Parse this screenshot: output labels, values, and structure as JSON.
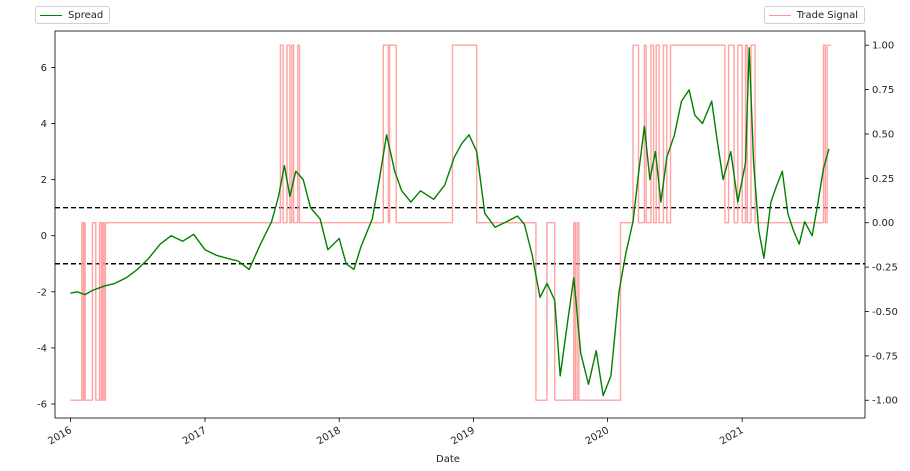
{
  "chart_data": {
    "type": "line",
    "xlabel": "Date",
    "x_ticks": [
      "2016",
      "2017",
      "2018",
      "2019",
      "2020",
      "2021"
    ],
    "y_left_ticks": [
      -6,
      -4,
      -2,
      0,
      2,
      4,
      6
    ],
    "y_right_ticks": [
      "-1.00",
      "-0.75",
      "-0.50",
      "-0.25",
      "0.00",
      "0.25",
      "0.50",
      "0.75",
      "1.00"
    ],
    "ylim_left": [
      -6.5,
      7.3
    ],
    "ylim_right": [
      -1.1,
      1.08
    ],
    "thresholds": [
      1,
      -1
    ],
    "grid": false,
    "legend": [
      {
        "name": "Spread",
        "color": "#008000",
        "placement": "top-left"
      },
      {
        "name": "Trade Signal",
        "color": "#ff9999",
        "placement": "top-right"
      }
    ],
    "series": [
      {
        "name": "Spread",
        "axis": "left",
        "color": "#008000",
        "points": [
          [
            "2016-01-01",
            -2.05
          ],
          [
            "2016-01-20",
            -2.0
          ],
          [
            "2016-02-10",
            -2.1
          ],
          [
            "2016-03-01",
            -1.95
          ],
          [
            "2016-04-01",
            -1.8
          ],
          [
            "2016-05-01",
            -1.7
          ],
          [
            "2016-06-01",
            -1.5
          ],
          [
            "2016-07-01",
            -1.2
          ],
          [
            "2016-08-01",
            -0.8
          ],
          [
            "2016-09-01",
            -0.3
          ],
          [
            "2016-10-01",
            0.0
          ],
          [
            "2016-11-01",
            -0.2
          ],
          [
            "2016-12-01",
            0.05
          ],
          [
            "2017-01-01",
            -0.5
          ],
          [
            "2017-02-01",
            -0.7
          ],
          [
            "2017-03-01",
            -0.8
          ],
          [
            "2017-04-01",
            -0.9
          ],
          [
            "2017-05-01",
            -1.2
          ],
          [
            "2017-06-01",
            -0.3
          ],
          [
            "2017-07-01",
            0.5
          ],
          [
            "2017-07-20",
            1.4
          ],
          [
            "2017-08-05",
            2.5
          ],
          [
            "2017-08-20",
            1.4
          ],
          [
            "2017-09-05",
            2.3
          ],
          [
            "2017-09-25",
            2.0
          ],
          [
            "2017-10-15",
            1.0
          ],
          [
            "2017-11-10",
            0.6
          ],
          [
            "2017-12-01",
            -0.5
          ],
          [
            "2018-01-01",
            -0.1
          ],
          [
            "2018-01-20",
            -1.0
          ],
          [
            "2018-02-10",
            -1.2
          ],
          [
            "2018-03-01",
            -0.4
          ],
          [
            "2018-04-01",
            0.6
          ],
          [
            "2018-04-20",
            2.0
          ],
          [
            "2018-05-10",
            3.6
          ],
          [
            "2018-06-01",
            2.3
          ],
          [
            "2018-06-20",
            1.6
          ],
          [
            "2018-07-15",
            1.2
          ],
          [
            "2018-08-10",
            1.6
          ],
          [
            "2018-09-15",
            1.3
          ],
          [
            "2018-10-15",
            1.8
          ],
          [
            "2018-11-10",
            2.8
          ],
          [
            "2018-12-01",
            3.3
          ],
          [
            "2018-12-20",
            3.6
          ],
          [
            "2019-01-10",
            3.0
          ],
          [
            "2019-02-01",
            0.8
          ],
          [
            "2019-03-01",
            0.3
          ],
          [
            "2019-04-01",
            0.5
          ],
          [
            "2019-05-01",
            0.7
          ],
          [
            "2019-05-20",
            0.4
          ],
          [
            "2019-06-10",
            -0.7
          ],
          [
            "2019-07-01",
            -2.2
          ],
          [
            "2019-07-20",
            -1.7
          ],
          [
            "2019-08-10",
            -2.3
          ],
          [
            "2019-08-25",
            -5.0
          ],
          [
            "2019-09-15",
            -3.0
          ],
          [
            "2019-10-01",
            -1.5
          ],
          [
            "2019-10-20",
            -4.2
          ],
          [
            "2019-11-10",
            -5.3
          ],
          [
            "2019-12-01",
            -4.1
          ],
          [
            "2019-12-20",
            -5.7
          ],
          [
            "2020-01-10",
            -5.0
          ],
          [
            "2020-02-01",
            -2.0
          ],
          [
            "2020-02-20",
            -0.6
          ],
          [
            "2020-03-10",
            0.5
          ],
          [
            "2020-03-25",
            2.2
          ],
          [
            "2020-04-10",
            3.9
          ],
          [
            "2020-04-25",
            2.0
          ],
          [
            "2020-05-10",
            3.0
          ],
          [
            "2020-05-25",
            1.2
          ],
          [
            "2020-06-10",
            2.8
          ],
          [
            "2020-07-01",
            3.6
          ],
          [
            "2020-07-20",
            4.8
          ],
          [
            "2020-08-10",
            5.2
          ],
          [
            "2020-08-25",
            4.3
          ],
          [
            "2020-09-15",
            4.0
          ],
          [
            "2020-10-10",
            4.8
          ],
          [
            "2020-10-25",
            3.4
          ],
          [
            "2020-11-10",
            2.0
          ],
          [
            "2020-12-01",
            3.0
          ],
          [
            "2020-12-20",
            1.2
          ],
          [
            "2021-01-10",
            2.6
          ],
          [
            "2021-01-20",
            6.7
          ],
          [
            "2021-02-01",
            2.6
          ],
          [
            "2021-02-15",
            0.2
          ],
          [
            "2021-03-01",
            -0.8
          ],
          [
            "2021-03-20",
            1.2
          ],
          [
            "2021-04-05",
            1.8
          ],
          [
            "2021-04-20",
            2.3
          ],
          [
            "2021-05-05",
            0.8
          ],
          [
            "2021-05-20",
            0.2
          ],
          [
            "2021-06-05",
            -0.3
          ],
          [
            "2021-06-20",
            0.5
          ],
          [
            "2021-07-10",
            0.0
          ],
          [
            "2021-07-25",
            1.1
          ],
          [
            "2021-08-10",
            2.4
          ],
          [
            "2021-08-25",
            3.1
          ]
        ]
      },
      {
        "name": "Trade Signal",
        "axis": "right",
        "color": "#ff9999",
        "points": [
          [
            "2016-01-01",
            -1
          ],
          [
            "2016-02-01",
            -1
          ],
          [
            "2016-02-01",
            0
          ],
          [
            "2016-02-05",
            0
          ],
          [
            "2016-02-05",
            -1
          ],
          [
            "2016-02-08",
            -1
          ],
          [
            "2016-02-08",
            0
          ],
          [
            "2016-02-10",
            0
          ],
          [
            "2016-02-10",
            -1
          ],
          [
            "2016-03-01",
            -1
          ],
          [
            "2016-03-01",
            0
          ],
          [
            "2016-03-10",
            0
          ],
          [
            "2016-03-10",
            -1
          ],
          [
            "2016-03-20",
            -1
          ],
          [
            "2016-03-20",
            0
          ],
          [
            "2016-03-25",
            0
          ],
          [
            "2016-03-25",
            -1
          ],
          [
            "2016-03-28",
            -1
          ],
          [
            "2016-03-28",
            0
          ],
          [
            "2016-04-01",
            0
          ],
          [
            "2016-04-01",
            -1
          ],
          [
            "2016-04-05",
            -1
          ],
          [
            "2016-04-05",
            0
          ],
          [
            "2017-07-25",
            0
          ],
          [
            "2017-07-25",
            1
          ],
          [
            "2017-08-01",
            1
          ],
          [
            "2017-08-01",
            0
          ],
          [
            "2017-08-12",
            0
          ],
          [
            "2017-08-12",
            1
          ],
          [
            "2017-08-20",
            1
          ],
          [
            "2017-08-20",
            0
          ],
          [
            "2017-08-25",
            0
          ],
          [
            "2017-08-25",
            1
          ],
          [
            "2017-08-30",
            1
          ],
          [
            "2017-08-30",
            0
          ],
          [
            "2017-09-10",
            0
          ],
          [
            "2017-09-10",
            1
          ],
          [
            "2017-09-15",
            1
          ],
          [
            "2017-09-15",
            0
          ],
          [
            "2018-05-01",
            0
          ],
          [
            "2018-05-01",
            1
          ],
          [
            "2018-05-15",
            1
          ],
          [
            "2018-05-15",
            0
          ],
          [
            "2018-05-18",
            0
          ],
          [
            "2018-05-18",
            1
          ],
          [
            "2018-06-05",
            1
          ],
          [
            "2018-06-05",
            0
          ],
          [
            "2018-11-05",
            0
          ],
          [
            "2018-11-05",
            1
          ],
          [
            "2019-01-10",
            1
          ],
          [
            "2019-01-10",
            0
          ],
          [
            "2019-06-20",
            0
          ],
          [
            "2019-06-20",
            -1
          ],
          [
            "2019-07-20",
            -1
          ],
          [
            "2019-07-20",
            0
          ],
          [
            "2019-08-10",
            0
          ],
          [
            "2019-08-10",
            -1
          ],
          [
            "2019-10-01",
            -1
          ],
          [
            "2019-10-01",
            0
          ],
          [
            "2019-10-05",
            0
          ],
          [
            "2019-10-05",
            -1
          ],
          [
            "2019-10-10",
            -1
          ],
          [
            "2019-10-10",
            0
          ],
          [
            "2019-10-15",
            0
          ],
          [
            "2019-10-15",
            -1
          ],
          [
            "2020-02-05",
            -1
          ],
          [
            "2020-02-05",
            0
          ],
          [
            "2020-03-10",
            0
          ],
          [
            "2020-03-10",
            1
          ],
          [
            "2020-03-25",
            1
          ],
          [
            "2020-03-25",
            0
          ],
          [
            "2020-04-10",
            0
          ],
          [
            "2020-04-10",
            1
          ],
          [
            "2020-04-15",
            1
          ],
          [
            "2020-04-15",
            0
          ],
          [
            "2020-04-28",
            0
          ],
          [
            "2020-04-28",
            1
          ],
          [
            "2020-05-05",
            1
          ],
          [
            "2020-05-05",
            0
          ],
          [
            "2020-05-12",
            0
          ],
          [
            "2020-05-12",
            1
          ],
          [
            "2020-05-20",
            1
          ],
          [
            "2020-05-20",
            0
          ],
          [
            "2020-06-01",
            0
          ],
          [
            "2020-06-01",
            1
          ],
          [
            "2020-06-10",
            1
          ],
          [
            "2020-06-10",
            0
          ],
          [
            "2020-06-20",
            0
          ],
          [
            "2020-06-20",
            1
          ],
          [
            "2020-11-15",
            1
          ],
          [
            "2020-11-15",
            0
          ],
          [
            "2020-11-25",
            0
          ],
          [
            "2020-11-25",
            1
          ],
          [
            "2020-12-10",
            1
          ],
          [
            "2020-12-10",
            0
          ],
          [
            "2020-12-20",
            0
          ],
          [
            "2020-12-20",
            1
          ],
          [
            "2021-01-01",
            1
          ],
          [
            "2021-01-01",
            0
          ],
          [
            "2021-01-10",
            0
          ],
          [
            "2021-01-10",
            1
          ],
          [
            "2021-01-15",
            1
          ],
          [
            "2021-01-15",
            0
          ],
          [
            "2021-01-25",
            0
          ],
          [
            "2021-01-25",
            1
          ],
          [
            "2021-02-05",
            1
          ],
          [
            "2021-02-05",
            0
          ],
          [
            "2021-08-10",
            0
          ],
          [
            "2021-08-10",
            1
          ],
          [
            "2021-08-15",
            1
          ],
          [
            "2021-08-15",
            0
          ],
          [
            "2021-08-20",
            0
          ],
          [
            "2021-08-20",
            1
          ],
          [
            "2021-08-31",
            1
          ]
        ]
      }
    ]
  }
}
